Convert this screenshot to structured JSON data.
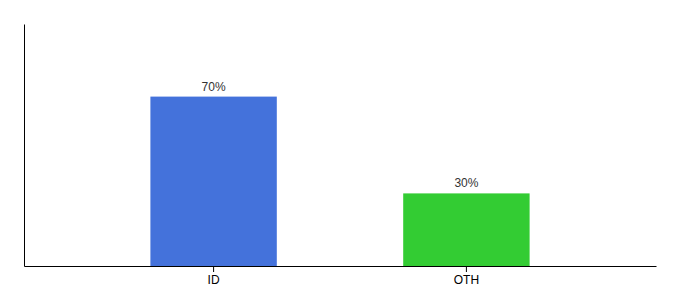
{
  "chart_data": {
    "type": "bar",
    "categories": [
      "ID",
      "OTH"
    ],
    "values": [
      70,
      30
    ],
    "value_labels": [
      "70%",
      "30%"
    ],
    "colors": [
      "#4472db",
      "#33cc33"
    ],
    "ylim": [
      0,
      100
    ],
    "yticks": [],
    "data_labels": true,
    "tick_labels": "x"
  }
}
